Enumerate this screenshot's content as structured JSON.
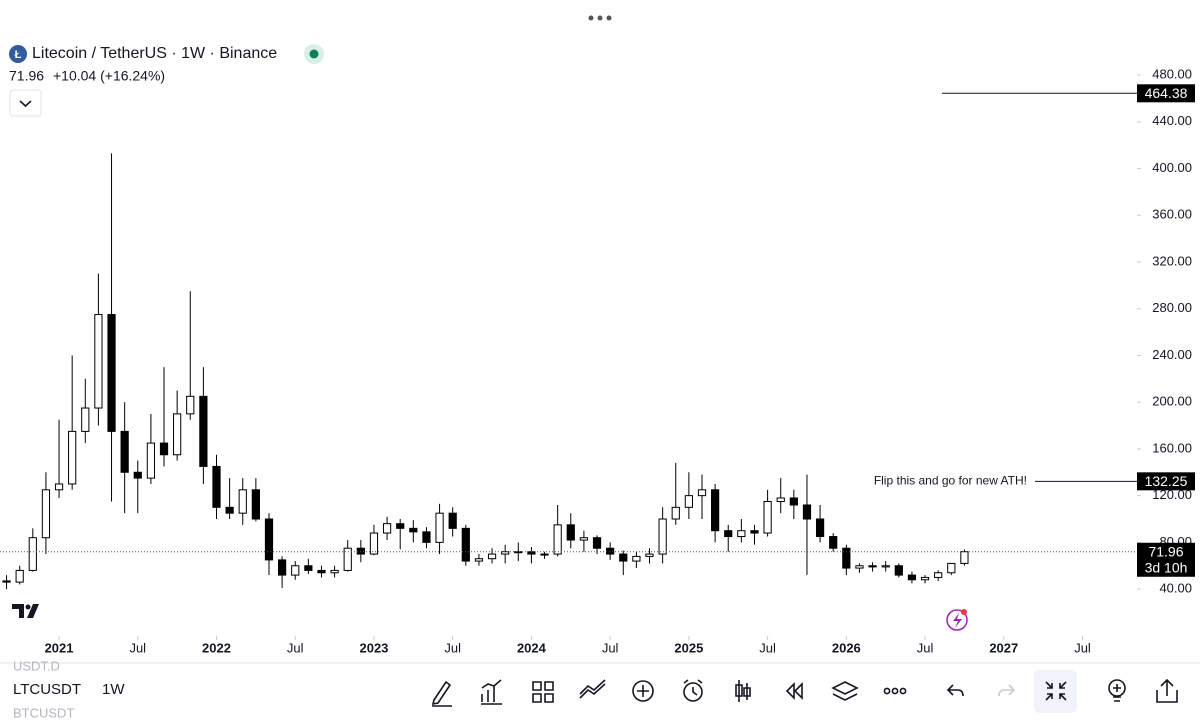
{
  "header": {
    "symbol": "Litecoin / TetherUS · 1W · Binance",
    "change": "+10.04 (+16.24%)"
  },
  "chart_data": {
    "type": "candlestick",
    "categories": [
      null,
      null,
      null,
      null,
      null,
      null,
      null,
      null,
      null,
      null,
      null,
      null,
      null,
      null,
      null,
      null,
      null,
      null,
      null,
      null,
      null,
      null,
      null,
      null,
      null,
      null,
      null,
      null,
      null,
      null,
      null,
      null,
      null,
      null,
      null,
      null,
      null,
      null,
      null,
      null,
      null,
      null,
      null,
      null,
      null,
      null,
      null,
      null,
      null,
      null,
      null,
      null,
      null,
      null,
      null,
      null,
      null,
      null,
      null,
      null,
      null,
      null,
      null,
      null,
      null,
      null,
      null,
      null,
      null,
      null,
      null,
      null,
      null,
      null
    ],
    "open": [
      47,
      46,
      56,
      84,
      125,
      130,
      175,
      195,
      275,
      175,
      140,
      135,
      165,
      155,
      190,
      205,
      145,
      110,
      105,
      125,
      100,
      65,
      52,
      60,
      56,
      54,
      56,
      75,
      70,
      88,
      96,
      92,
      89,
      80,
      105,
      92,
      64,
      66,
      70,
      72,
      72,
      70,
      70,
      95,
      82,
      84,
      75,
      70,
      64,
      68,
      70,
      100,
      110,
      120,
      125,
      90,
      85,
      90,
      88,
      115,
      118,
      112,
      100,
      85,
      75,
      58,
      60,
      59,
      60,
      52,
      48,
      50,
      54,
      62
    ],
    "high": [
      52,
      60,
      92,
      140,
      185,
      240,
      220,
      310,
      413,
      200,
      150,
      190,
      230,
      210,
      295,
      230,
      155,
      135,
      135,
      135,
      105,
      68,
      64,
      66,
      60,
      60,
      82,
      82,
      95,
      102,
      100,
      99,
      93,
      113,
      110,
      95,
      70,
      75,
      78,
      80,
      76,
      72,
      112,
      105,
      90,
      86,
      80,
      73,
      72,
      75,
      110,
      148,
      140,
      138,
      130,
      95,
      100,
      95,
      125,
      135,
      125,
      138,
      112,
      88,
      78,
      62,
      63,
      64,
      62,
      55,
      52,
      56,
      62,
      74
    ],
    "low": [
      40,
      44,
      55,
      70,
      118,
      125,
      165,
      180,
      115,
      105,
      105,
      130,
      145,
      150,
      185,
      130,
      100,
      100,
      95,
      98,
      52,
      41,
      48,
      53,
      50,
      50,
      55,
      63,
      69,
      82,
      74,
      80,
      75,
      70,
      85,
      60,
      60,
      62,
      62,
      64,
      62,
      66,
      68,
      75,
      72,
      70,
      65,
      52,
      58,
      62,
      62,
      95,
      100,
      100,
      80,
      72,
      80,
      78,
      85,
      105,
      100,
      52,
      80,
      72,
      52,
      54,
      55,
      55,
      50,
      45,
      45,
      47,
      52,
      60
    ],
    "close": [
      46,
      56,
      84,
      125,
      130,
      175,
      195,
      275,
      175,
      140,
      135,
      165,
      155,
      190,
      205,
      145,
      110,
      105,
      125,
      100,
      65,
      52,
      60,
      56,
      54,
      56,
      75,
      70,
      88,
      96,
      92,
      89,
      80,
      105,
      92,
      64,
      66,
      70,
      72,
      72,
      70,
      70,
      95,
      82,
      84,
      75,
      70,
      64,
      68,
      70,
      100,
      110,
      120,
      125,
      90,
      85,
      90,
      88,
      115,
      118,
      112,
      100,
      85,
      75,
      58,
      60,
      59,
      60,
      52,
      48,
      50,
      54,
      62,
      72
    ],
    "up_color": "#ffffff",
    "down_color": "#000000",
    "xlim": [
      -0.5,
      86
    ],
    "ylim": [
      5,
      510
    ],
    "xticks": [
      {
        "value": 4,
        "label": "2021"
      },
      {
        "value": 10,
        "label": "Jul"
      },
      {
        "value": 16,
        "label": "2022"
      },
      {
        "value": 22,
        "label": "Jul"
      },
      {
        "value": 28,
        "label": "2023"
      },
      {
        "value": 34,
        "label": "Jul"
      },
      {
        "value": 40,
        "label": "2024"
      },
      {
        "value": 46,
        "label": "Jul"
      },
      {
        "value": 52,
        "label": "2025"
      },
      {
        "value": 58,
        "label": "Jul"
      },
      {
        "value": 64,
        "label": "2026"
      },
      {
        "value": 70,
        "label": "Jul"
      },
      {
        "value": 76,
        "label": "2027"
      },
      {
        "value": 82,
        "label": "Jul"
      }
    ],
    "yticks": [
      {
        "value": 40,
        "label": "40.00"
      },
      {
        "value": 80,
        "label": "80.00"
      },
      {
        "value": 120,
        "label": "120.00"
      },
      {
        "value": 160,
        "label": "160.00"
      },
      {
        "value": 200,
        "label": "200.00"
      },
      {
        "value": 240,
        "label": "240.00"
      },
      {
        "value": 280,
        "label": "280.00"
      },
      {
        "value": 320,
        "label": "320.00"
      },
      {
        "value": 360,
        "label": "360.00"
      },
      {
        "value": 400,
        "label": "400.00"
      },
      {
        "value": 440,
        "label": "440.00"
      },
      {
        "value": 480,
        "label": "480.00"
      }
    ],
    "lines": [
      {
        "value": 464.38
      },
      {
        "value": 132.25,
        "text": "Flip this and go for new ATH!"
      }
    ],
    "last_price": 71.96,
    "countdown": "3d 10h"
  },
  "toolbar": {
    "symbol": "LTCUSDT",
    "interval": "1W",
    "above": "USDT.D",
    "below": "BTCUSDT"
  }
}
